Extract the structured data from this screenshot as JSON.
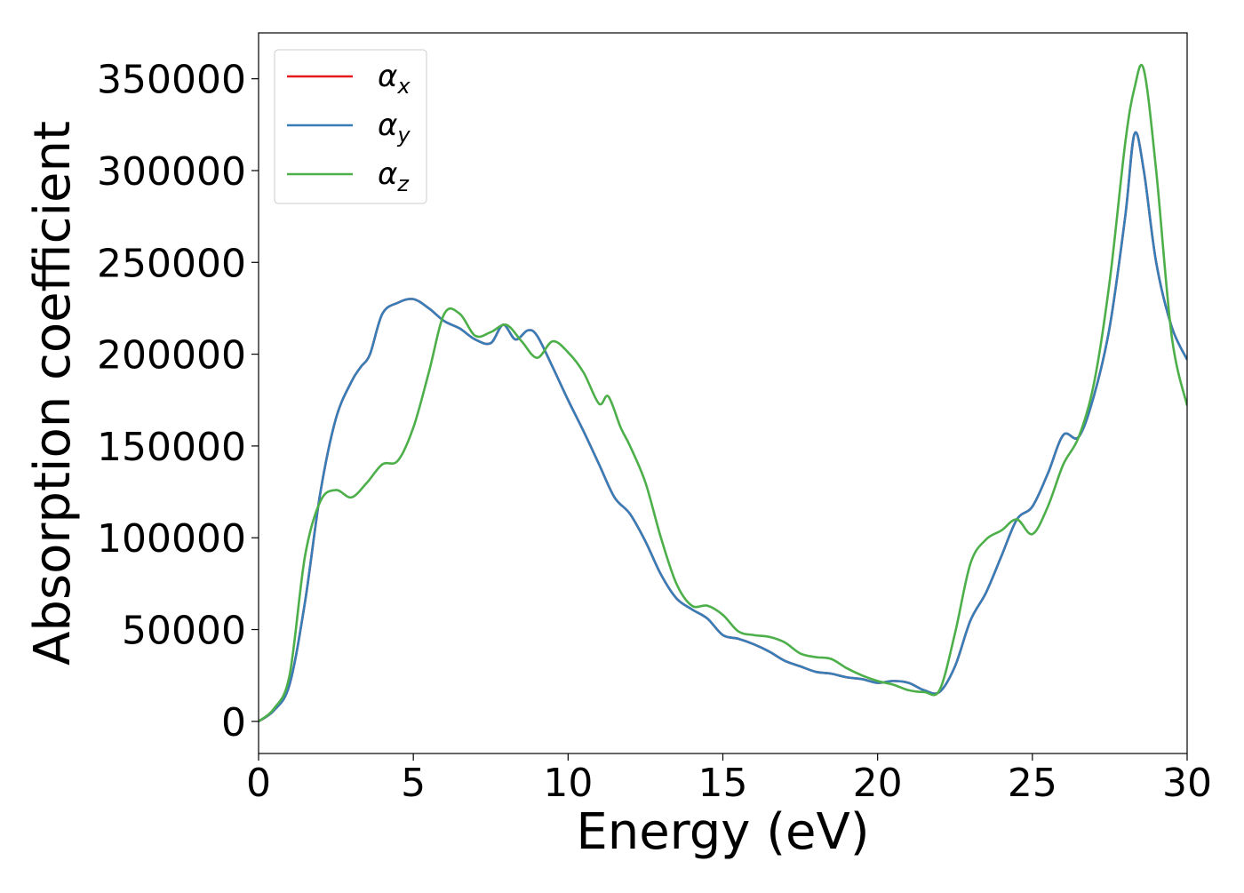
{
  "chart_data": {
    "type": "line",
    "xlabel": "Energy (eV)",
    "ylabel": "Absorption coefficient",
    "xlim": [
      0,
      30
    ],
    "ylim": [
      -17500,
      375000
    ],
    "xticks": [
      0,
      5,
      10,
      15,
      20,
      25,
      30
    ],
    "yticks": [
      0,
      50000,
      100000,
      150000,
      200000,
      250000,
      300000,
      350000
    ],
    "grid": false,
    "legend_position": "top-left",
    "series": [
      {
        "name": "αx",
        "greek": "α",
        "sub": "x",
        "color": "#e41a1c",
        "x": [
          0,
          0.5,
          1.0,
          1.5,
          2.0,
          2.5,
          3.0,
          3.3,
          3.6,
          4.0,
          4.5,
          5.0,
          5.5,
          6.0,
          6.5,
          7.0,
          7.5,
          7.9,
          8.3,
          8.7,
          9.0,
          9.5,
          10.0,
          10.5,
          11.0,
          11.5,
          12.0,
          12.5,
          13.0,
          13.5,
          14.0,
          14.5,
          15.0,
          15.5,
          16.0,
          16.5,
          17.0,
          17.5,
          18.0,
          18.5,
          19.0,
          19.5,
          20.0,
          20.5,
          21.0,
          21.5,
          22.0,
          22.5,
          23.0,
          23.5,
          24.0,
          24.5,
          25.0,
          25.5,
          26.0,
          26.5,
          27.0,
          27.5,
          28.0,
          28.3,
          28.6,
          29.0,
          29.5,
          30.0
        ],
        "y": [
          0,
          6000,
          20000,
          65000,
          125000,
          165000,
          185000,
          193000,
          200000,
          222000,
          228000,
          230000,
          225000,
          218000,
          214000,
          208000,
          206000,
          216000,
          208000,
          213000,
          210000,
          193000,
          175000,
          158000,
          140000,
          122000,
          113000,
          98000,
          80000,
          67000,
          61000,
          56000,
          47000,
          45000,
          42000,
          38000,
          33000,
          30000,
          27000,
          26000,
          24000,
          23000,
          21000,
          22000,
          21000,
          17000,
          16000,
          30000,
          55000,
          70000,
          90000,
          110000,
          117000,
          135000,
          156000,
          155000,
          178000,
          215000,
          275000,
          320000,
          300000,
          250000,
          215000,
          197000
        ]
      },
      {
        "name": "αy",
        "greek": "α",
        "sub": "y",
        "color": "#377eb8",
        "x": [
          0,
          0.5,
          1.0,
          1.5,
          2.0,
          2.5,
          3.0,
          3.3,
          3.6,
          4.0,
          4.5,
          5.0,
          5.5,
          6.0,
          6.5,
          7.0,
          7.5,
          7.9,
          8.3,
          8.7,
          9.0,
          9.5,
          10.0,
          10.5,
          11.0,
          11.5,
          12.0,
          12.5,
          13.0,
          13.5,
          14.0,
          14.5,
          15.0,
          15.5,
          16.0,
          16.5,
          17.0,
          17.5,
          18.0,
          18.5,
          19.0,
          19.5,
          20.0,
          20.5,
          21.0,
          21.5,
          22.0,
          22.5,
          23.0,
          23.5,
          24.0,
          24.5,
          25.0,
          25.5,
          26.0,
          26.5,
          27.0,
          27.5,
          28.0,
          28.3,
          28.6,
          29.0,
          29.5,
          30.0
        ],
        "y": [
          0,
          6000,
          20000,
          65000,
          125000,
          165000,
          185000,
          193000,
          200000,
          222000,
          228000,
          230000,
          225000,
          218000,
          214000,
          208000,
          206000,
          216000,
          208000,
          213000,
          210000,
          193000,
          175000,
          158000,
          140000,
          122000,
          113000,
          98000,
          80000,
          67000,
          61000,
          56000,
          47000,
          45000,
          42000,
          38000,
          33000,
          30000,
          27000,
          26000,
          24000,
          23000,
          21000,
          22000,
          21000,
          17000,
          16000,
          30000,
          55000,
          70000,
          90000,
          110000,
          117000,
          135000,
          156000,
          155000,
          178000,
          215000,
          275000,
          320000,
          300000,
          250000,
          215000,
          197000
        ]
      },
      {
        "name": "αz",
        "greek": "α",
        "sub": "z",
        "color": "#4daf4a",
        "x": [
          0,
          0.5,
          1.0,
          1.5,
          2.0,
          2.5,
          3.0,
          3.5,
          4.0,
          4.5,
          5.0,
          5.5,
          6.0,
          6.5,
          7.0,
          7.5,
          8.0,
          8.5,
          9.0,
          9.5,
          10.0,
          10.5,
          11.0,
          11.3,
          11.7,
          12.0,
          12.5,
          13.0,
          13.5,
          14.0,
          14.5,
          15.0,
          15.5,
          16.0,
          16.5,
          17.0,
          17.5,
          18.0,
          18.5,
          19.0,
          19.5,
          20.0,
          20.5,
          21.0,
          21.5,
          22.0,
          22.5,
          23.0,
          23.5,
          24.0,
          24.5,
          25.0,
          25.5,
          26.0,
          26.5,
          27.0,
          27.5,
          28.0,
          28.3,
          28.6,
          29.0,
          29.5,
          30.0
        ],
        "y": [
          0,
          7000,
          25000,
          90000,
          120000,
          126000,
          122000,
          130000,
          140000,
          142000,
          160000,
          190000,
          222000,
          222000,
          210000,
          212000,
          216000,
          207000,
          198000,
          207000,
          201000,
          190000,
          173000,
          177000,
          160000,
          150000,
          130000,
          100000,
          75000,
          63000,
          63000,
          58000,
          49000,
          47000,
          46000,
          43000,
          37000,
          35000,
          34000,
          29000,
          25000,
          22000,
          20000,
          17000,
          16000,
          17000,
          48000,
          86000,
          99000,
          104000,
          110000,
          102000,
          117000,
          140000,
          155000,
          185000,
          240000,
          315000,
          345000,
          355000,
          300000,
          210000,
          172000
        ]
      }
    ]
  }
}
